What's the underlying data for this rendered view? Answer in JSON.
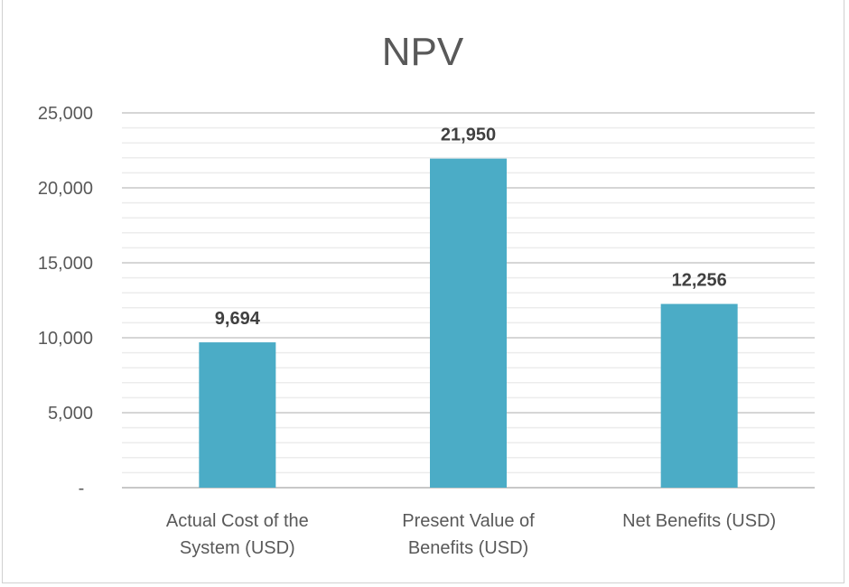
{
  "chart_data": {
    "type": "bar",
    "title": "NPV",
    "categories": [
      [
        "Actual Cost of the",
        "System (USD)"
      ],
      [
        "Present Value of",
        "Benefits (USD)"
      ],
      [
        "Net Benefits (USD)"
      ]
    ],
    "values": [
      9694,
      21950,
      12256
    ],
    "data_labels": [
      "9,694",
      "21,950",
      "12,256"
    ],
    "yticks": [
      0,
      5000,
      10000,
      15000,
      20000,
      25000
    ],
    "ytick_labels": [
      "-",
      "5,000",
      "10,000",
      "15,000",
      "20,000",
      "25,000"
    ],
    "ylim": [
      0,
      25000
    ],
    "minor_grid_step": 1000,
    "grid": true,
    "xlabel": "",
    "ylabel": "",
    "bar_color": "#4BACC6"
  }
}
